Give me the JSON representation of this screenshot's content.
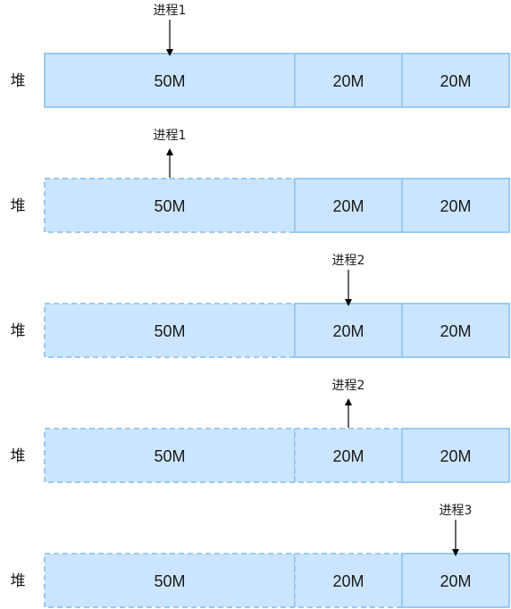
{
  "colors": {
    "block_fill": "#cce5ff",
    "block_stroke": "#99c9f2",
    "text": "#1a1a1a",
    "arrow": "#000000"
  },
  "rows": [
    {
      "label": "堆",
      "segments": [
        {
          "label": "50M",
          "freed": false
        },
        {
          "label": "20M",
          "freed": false
        },
        {
          "label": "20M",
          "freed": false
        }
      ],
      "process": {
        "label": "进程1",
        "segment": 0,
        "direction": "down"
      }
    },
    {
      "label": "堆",
      "segments": [
        {
          "label": "50M",
          "freed": true
        },
        {
          "label": "20M",
          "freed": false
        },
        {
          "label": "20M",
          "freed": false
        }
      ],
      "process": {
        "label": "进程1",
        "segment": 0,
        "direction": "up"
      }
    },
    {
      "label": "堆",
      "segments": [
        {
          "label": "50M",
          "freed": true
        },
        {
          "label": "20M",
          "freed": false
        },
        {
          "label": "20M",
          "freed": false
        }
      ],
      "process": {
        "label": "进程2",
        "segment": 1,
        "direction": "down"
      }
    },
    {
      "label": "堆",
      "segments": [
        {
          "label": "50M",
          "freed": true
        },
        {
          "label": "20M",
          "freed": true
        },
        {
          "label": "20M",
          "freed": false
        }
      ],
      "process": {
        "label": "进程2",
        "segment": 1,
        "direction": "up"
      }
    },
    {
      "label": "堆",
      "segments": [
        {
          "label": "50M",
          "freed": true
        },
        {
          "label": "20M",
          "freed": true
        },
        {
          "label": "20M",
          "freed": false
        }
      ],
      "process": {
        "label": "进程3",
        "segment": 2,
        "direction": "down"
      }
    }
  ]
}
